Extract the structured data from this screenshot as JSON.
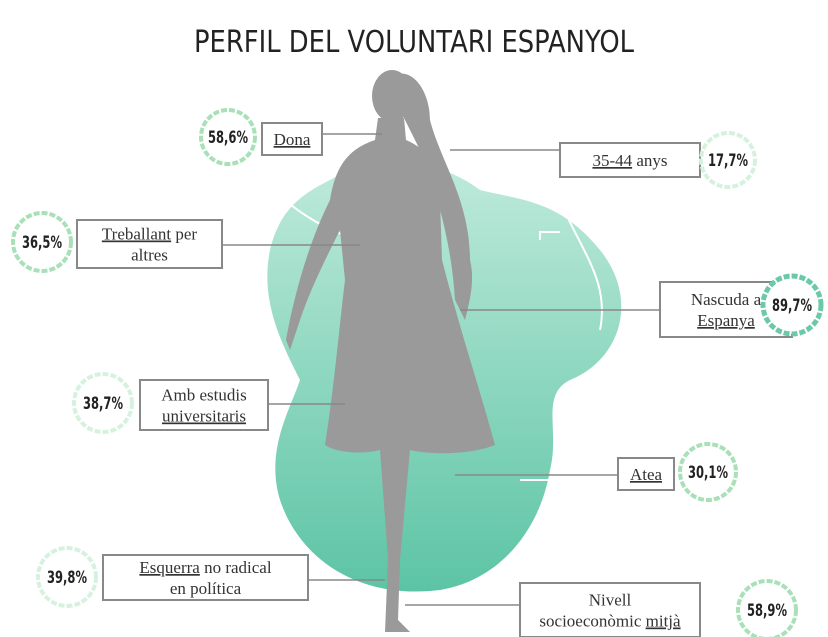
{
  "title": "PERFIL DEL VOLUNTARI ESPANYOL",
  "items": [
    {
      "percent": "58,6%",
      "lines": [
        [
          {
            "text": "Dona",
            "underline": true
          }
        ]
      ]
    },
    {
      "percent": "17,7%",
      "lines": [
        [
          {
            "text": "35-44",
            "underline": true
          },
          {
            "text": " anys"
          }
        ]
      ]
    },
    {
      "percent": "36,5%",
      "lines": [
        [
          {
            "text": "Treballant",
            "underline": true
          },
          {
            "text": " per"
          }
        ],
        [
          {
            "text": "altres"
          }
        ]
      ]
    },
    {
      "percent": "89,7%",
      "lines": [
        [
          {
            "text": "Nascuda a"
          }
        ],
        [
          {
            "text": "Espanya",
            "underline": true
          }
        ]
      ]
    },
    {
      "percent": "38,7%",
      "lines": [
        [
          {
            "text": "Amb estudis"
          }
        ],
        [
          {
            "text": "universitaris",
            "underline": true
          }
        ]
      ]
    },
    {
      "percent": "30,1%",
      "lines": [
        [
          {
            "text": "Atea",
            "underline": true
          }
        ]
      ]
    },
    {
      "percent": "39,8%",
      "lines": [
        [
          {
            "text": "Esquerra",
            "underline": true
          },
          {
            "text": " no radical"
          }
        ],
        [
          {
            "text": "en política"
          }
        ]
      ]
    },
    {
      "percent": "58,9%",
      "lines": [
        [
          {
            "text": "Nivell"
          }
        ],
        [
          {
            "text": "socioeconòmic "
          },
          {
            "text": "mitjà",
            "underline": true
          }
        ]
      ]
    }
  ]
}
